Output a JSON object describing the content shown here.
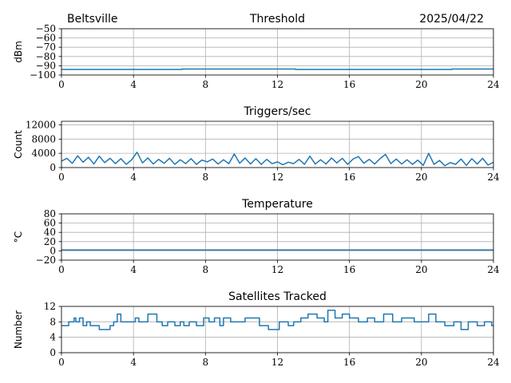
{
  "header": {
    "left": "Beltsville",
    "right": "2025/04/22"
  },
  "colors": {
    "line": "#1f77b4",
    "grid": "#b0b0b0",
    "axis": "#000000"
  },
  "chart_data": [
    {
      "type": "line",
      "title": "Threshold",
      "ylabel": "dBm",
      "xlim": [
        0,
        24
      ],
      "ylim": [
        -100,
        -50
      ],
      "x_ticks": [
        0,
        4,
        8,
        12,
        16,
        20,
        24
      ],
      "y_ticks": [
        -100,
        -90,
        -80,
        -70,
        -60,
        -50
      ],
      "y_tick_labels": [
        "−100",
        "−90",
        "−80",
        "−70",
        "−60",
        "−50"
      ],
      "grid": true,
      "series": [
        {
          "x": [
            0,
            6.7,
            6.7,
            13,
            13,
            21.7,
            21.7,
            24
          ],
          "values": [
            -94,
            -94,
            -93.5,
            -93.5,
            -94,
            -94,
            -93.5,
            -93.5
          ]
        }
      ]
    },
    {
      "type": "line",
      "title": "Triggers/sec",
      "ylabel": "Count",
      "xlim": [
        0,
        24
      ],
      "ylim": [
        0,
        13000
      ],
      "x_ticks": [
        0,
        4,
        8,
        12,
        16,
        20,
        24
      ],
      "y_ticks": [
        0,
        4000,
        8000,
        12000
      ],
      "y_tick_labels": [
        "0",
        "4000",
        "8000",
        "12000"
      ],
      "grid": true,
      "series": [
        {
          "x": [
            0,
            0.3,
            0.6,
            0.9,
            1.2,
            1.5,
            1.8,
            2.1,
            2.4,
            2.7,
            3.0,
            3.3,
            3.6,
            3.9,
            4.2,
            4.5,
            4.8,
            5.1,
            5.4,
            5.7,
            6.0,
            6.3,
            6.6,
            6.9,
            7.2,
            7.5,
            7.8,
            8.1,
            8.4,
            8.7,
            9.0,
            9.3,
            9.6,
            9.9,
            10.2,
            10.5,
            10.8,
            11.1,
            11.4,
            11.7,
            12.0,
            12.3,
            12.6,
            12.9,
            13.2,
            13.5,
            13.8,
            14.1,
            14.4,
            14.7,
            15.0,
            15.3,
            15.6,
            15.9,
            16.2,
            16.5,
            16.8,
            17.1,
            17.4,
            17.7,
            18.0,
            18.3,
            18.6,
            18.9,
            19.2,
            19.5,
            19.8,
            20.1,
            20.4,
            20.7,
            21.0,
            21.3,
            21.6,
            21.9,
            22.2,
            22.5,
            22.8,
            23.1,
            23.4,
            23.7,
            24.0
          ],
          "values": [
            1800,
            2600,
            1200,
            3300,
            1500,
            2900,
            1000,
            3200,
            1400,
            2600,
            1100,
            2500,
            900,
            2200,
            4300,
            1300,
            2700,
            1000,
            2300,
            1200,
            2600,
            900,
            2200,
            1100,
            2500,
            900,
            2100,
            1600,
            2400,
            1000,
            2200,
            1100,
            3800,
            1200,
            2700,
            1000,
            2500,
            900,
            2300,
            1100,
            1600,
            800,
            1500,
            1100,
            2300,
            900,
            3200,
            1000,
            2200,
            1000,
            2700,
            1300,
            2600,
            900,
            2400,
            3100,
            1200,
            2300,
            1000,
            2500,
            3700,
            1100,
            2400,
            1000,
            2200,
            900,
            2100,
            600,
            4000,
            900,
            2000,
            500,
            1400,
            900,
            2400,
            600,
            2500,
            1000,
            2600,
            700,
            1500
          ]
        }
      ]
    },
    {
      "type": "line",
      "title": "Temperature",
      "ylabel": "°C",
      "xlim": [
        0,
        24
      ],
      "ylim": [
        -20,
        80
      ],
      "x_ticks": [
        0,
        4,
        8,
        12,
        16,
        20,
        24
      ],
      "y_ticks": [
        -20,
        0,
        20,
        40,
        60,
        80
      ],
      "y_tick_labels": [
        "−20",
        "0",
        "20",
        "40",
        "60",
        "80"
      ],
      "grid": true,
      "series": [
        {
          "x": [
            0,
            24
          ],
          "values": [
            2,
            2
          ]
        }
      ]
    },
    {
      "type": "line",
      "title": "Satellites Tracked",
      "ylabel": "Number",
      "xlim": [
        0,
        24
      ],
      "ylim": [
        0,
        12
      ],
      "x_ticks": [
        0,
        4,
        8,
        12,
        16,
        20,
        24
      ],
      "y_ticks": [
        0,
        4,
        8,
        12
      ],
      "y_tick_labels": [
        "0",
        "4",
        "8",
        "12"
      ],
      "grid": true,
      "series": [
        {
          "x": [
            0,
            0.4,
            0.4,
            0.7,
            0.7,
            0.8,
            0.8,
            1.0,
            1.0,
            1.2,
            1.2,
            1.4,
            1.4,
            1.6,
            1.6,
            2.1,
            2.1,
            2.7,
            2.7,
            2.9,
            2.9,
            3.1,
            3.1,
            3.3,
            3.3,
            4.1,
            4.1,
            4.3,
            4.3,
            4.8,
            4.8,
            5.3,
            5.3,
            5.6,
            5.6,
            5.9,
            5.9,
            6.3,
            6.3,
            6.6,
            6.6,
            6.8,
            6.8,
            7.1,
            7.1,
            7.5,
            7.5,
            7.9,
            7.9,
            8.2,
            8.2,
            8.5,
            8.5,
            8.8,
            8.8,
            9.0,
            9.0,
            9.4,
            9.4,
            10.2,
            10.2,
            11.0,
            11.0,
            11.5,
            11.5,
            12.1,
            12.1,
            12.6,
            12.6,
            12.9,
            12.9,
            13.3,
            13.3,
            13.7,
            13.7,
            14.2,
            14.2,
            14.6,
            14.6,
            14.8,
            14.8,
            15.2,
            15.2,
            15.6,
            15.6,
            16.0,
            16.0,
            16.5,
            16.5,
            17.0,
            17.0,
            17.4,
            17.4,
            17.9,
            17.9,
            18.4,
            18.4,
            18.9,
            18.9,
            19.6,
            19.6,
            20.4,
            20.4,
            20.8,
            20.8,
            21.3,
            21.3,
            21.8,
            21.8,
            22.2,
            22.2,
            22.6,
            22.6,
            23.1,
            23.1,
            23.5,
            23.5,
            23.9,
            23.9,
            24.0
          ],
          "values": [
            7,
            7,
            8,
            8,
            9,
            9,
            8,
            8,
            9,
            9,
            7,
            7,
            8,
            8,
            7,
            7,
            6,
            6,
            7,
            7,
            8,
            8,
            10,
            10,
            8,
            8,
            9,
            9,
            8,
            8,
            10,
            10,
            8,
            8,
            7,
            7,
            8,
            8,
            7,
            7,
            8,
            8,
            7,
            7,
            8,
            8,
            7,
            7,
            9,
            9,
            8,
            8,
            9,
            9,
            7,
            7,
            9,
            9,
            8,
            8,
            9,
            9,
            7,
            7,
            6,
            6,
            8,
            8,
            7,
            7,
            8,
            8,
            9,
            9,
            10,
            10,
            9,
            9,
            8,
            8,
            11,
            11,
            9,
            9,
            10,
            10,
            9,
            9,
            8,
            8,
            9,
            9,
            8,
            8,
            10,
            10,
            8,
            8,
            9,
            9,
            8,
            8,
            10,
            10,
            8,
            8,
            7,
            7,
            8,
            8,
            6,
            6,
            8,
            8,
            7,
            7,
            8,
            8,
            7,
            7
          ]
        }
      ]
    }
  ]
}
